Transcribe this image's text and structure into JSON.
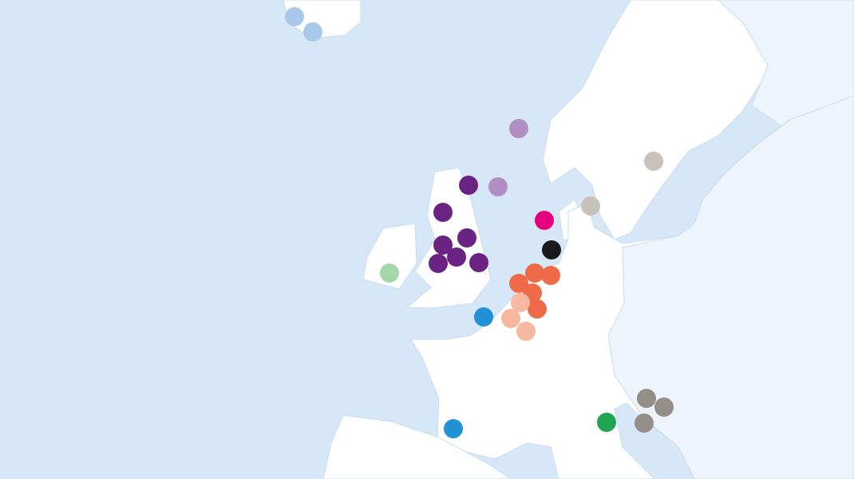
{
  "markers": [
    {
      "color": "#a9c8ea"
    },
    {
      "color": "#a9c8ea"
    },
    {
      "color": "#b08ec4"
    },
    {
      "color": "#b08ec4"
    },
    {
      "color": "#6a2383"
    },
    {
      "color": "#6a2383"
    },
    {
      "color": "#6a2383"
    },
    {
      "color": "#6a2383"
    },
    {
      "color": "#6a2383"
    },
    {
      "color": "#6a2383"
    },
    {
      "color": "#6a2383"
    },
    {
      "color": "#a5d6a7"
    },
    {
      "color": "#e6007e"
    },
    {
      "color": "#1a1a1a"
    },
    {
      "color": "#c7c2ba"
    },
    {
      "color": "#c7c2ba"
    },
    {
      "color": "#ee6a48"
    },
    {
      "color": "#ee6a48"
    },
    {
      "color": "#ee6a48"
    },
    {
      "color": "#ee6a48"
    },
    {
      "color": "#ee6a48"
    },
    {
      "color": "#f7b8a0"
    },
    {
      "color": "#f7b8a0"
    },
    {
      "color": "#f7b8a0"
    },
    {
      "color": "#2391d6"
    },
    {
      "color": "#2391d6"
    },
    {
      "color": "#958d87"
    },
    {
      "color": "#958d87"
    },
    {
      "color": "#958d87"
    },
    {
      "color": "#1fa552"
    }
  ]
}
